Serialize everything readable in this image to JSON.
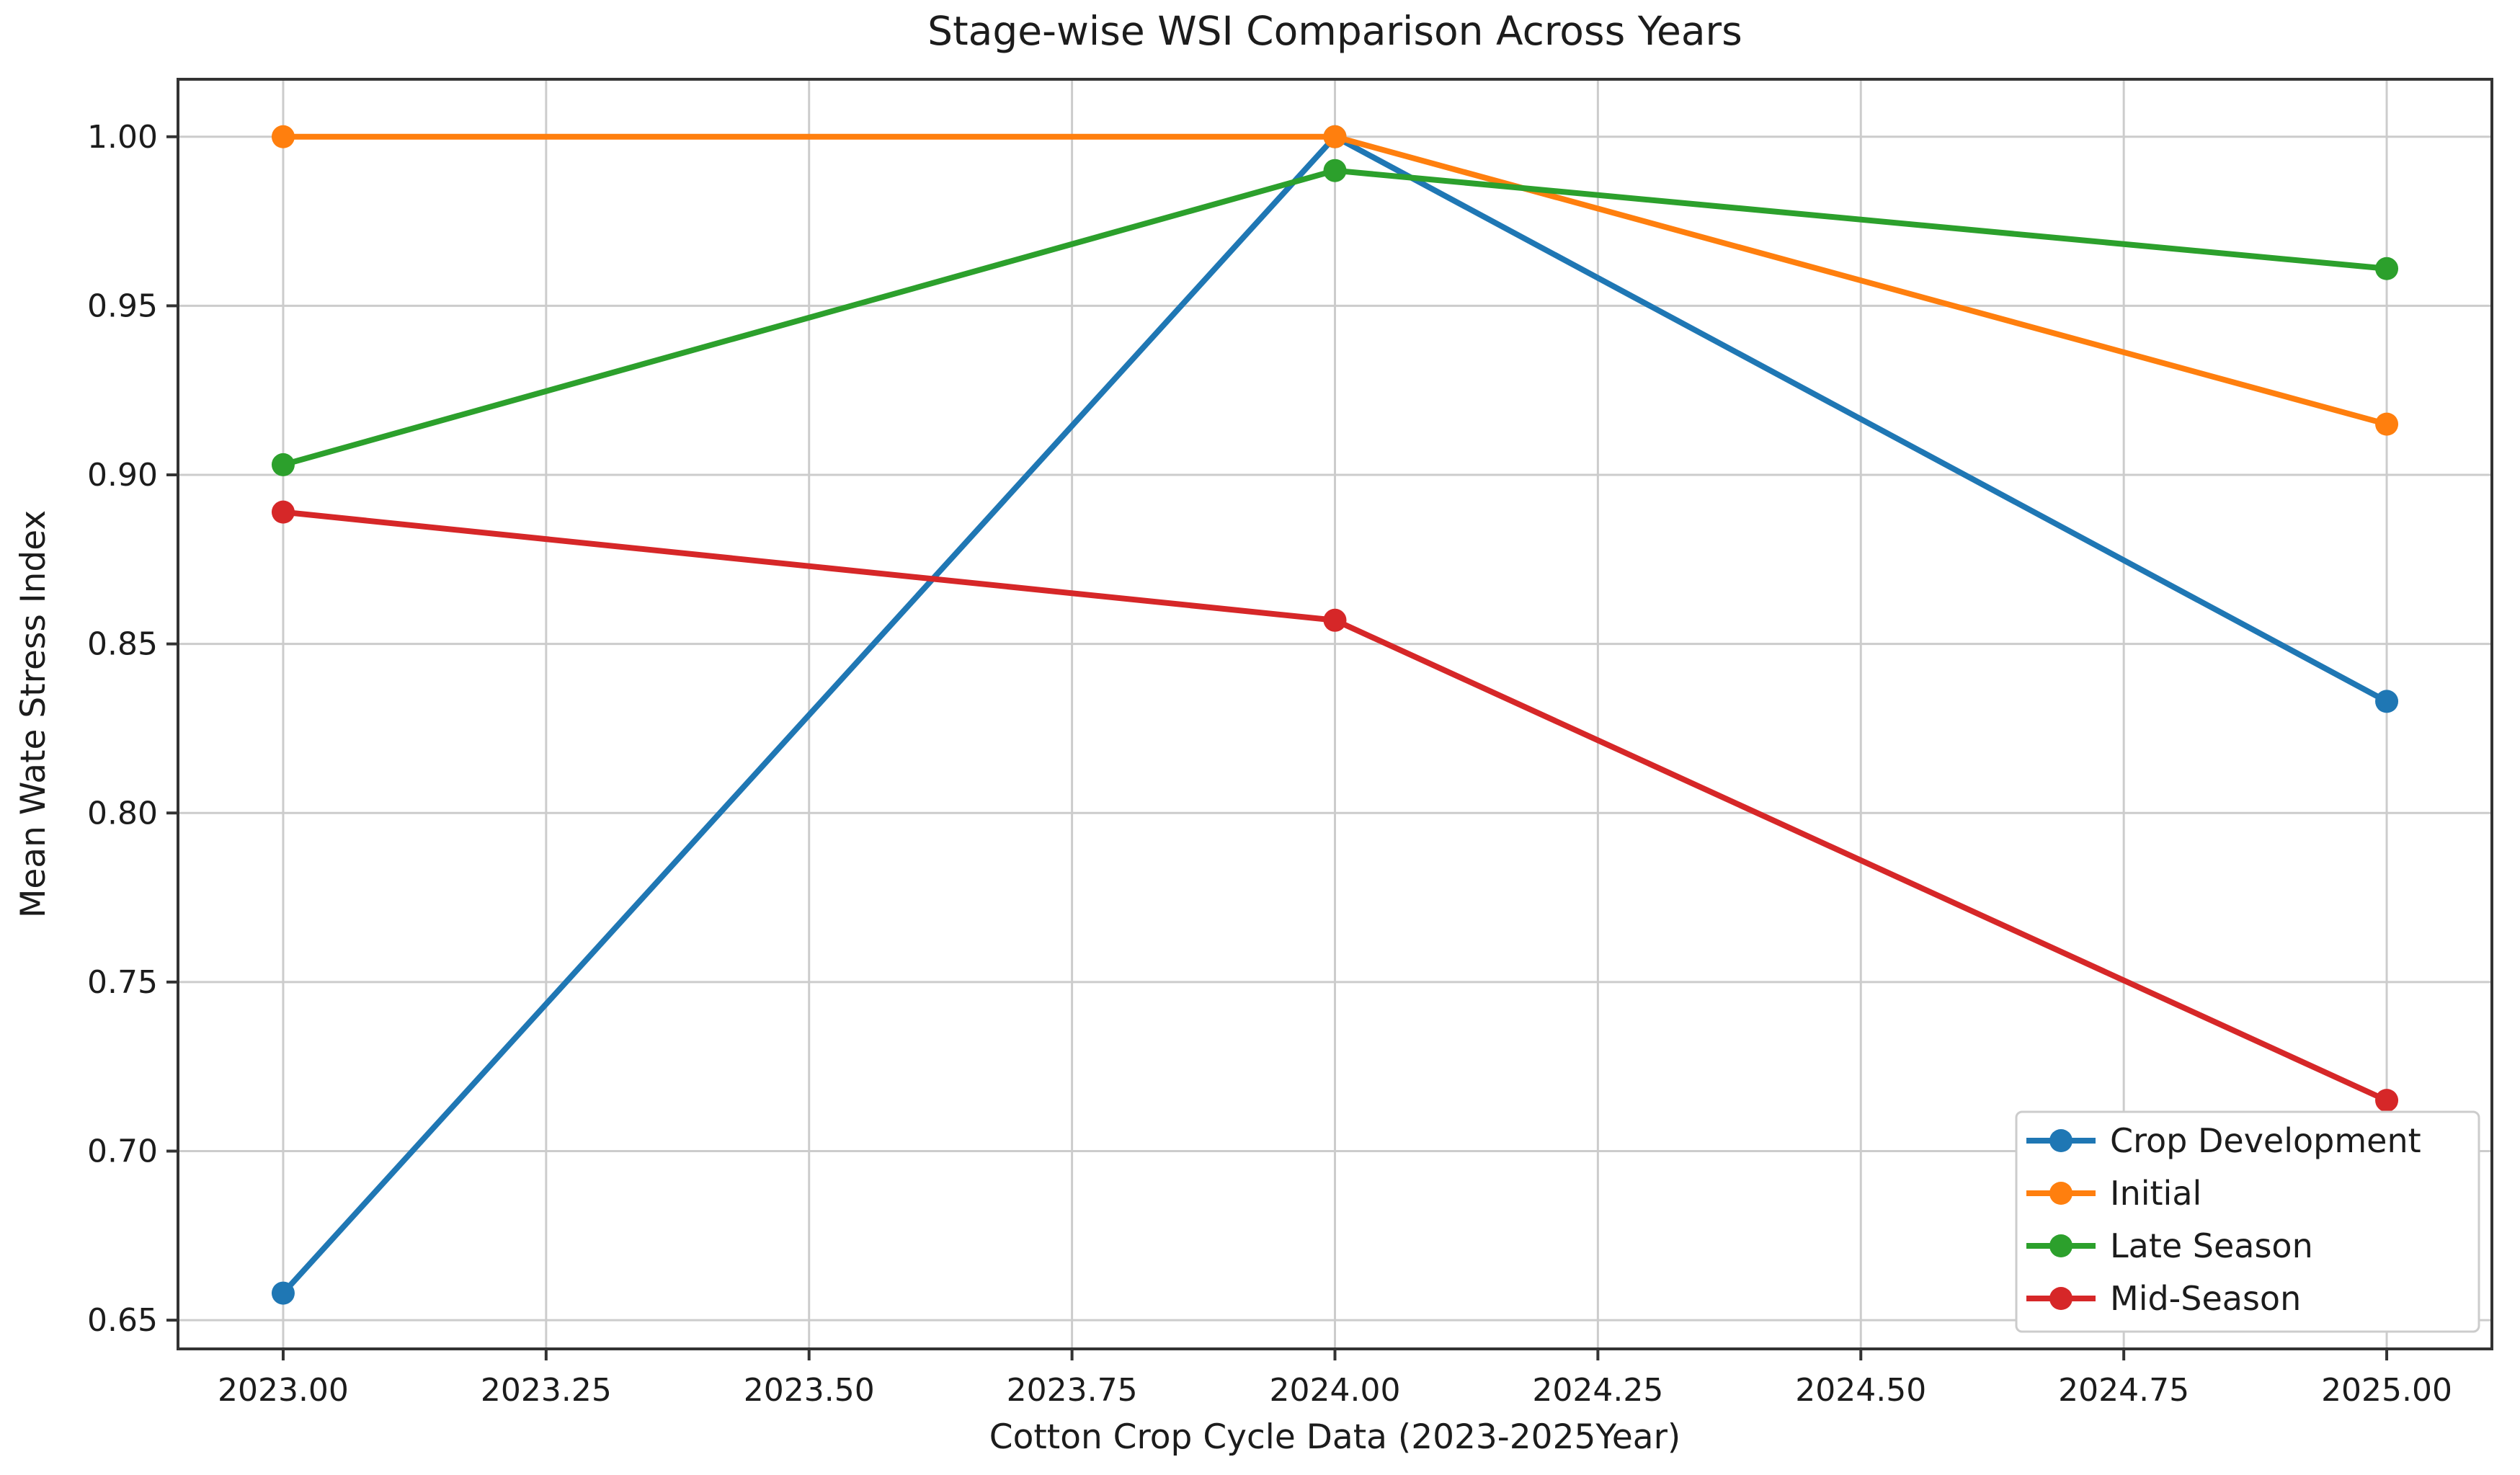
{
  "chart_data": {
    "type": "line",
    "title": "Stage-wise WSI Comparison Across Years",
    "xlabel": "Cotton Crop Cycle Data (2023-2025Year)",
    "ylabel": "Mean Wate Stress Index",
    "x": [
      2023,
      2024,
      2025
    ],
    "series": [
      {
        "name": "Crop Development",
        "color": "#1f77b4",
        "values": [
          0.658,
          1.0,
          0.833
        ]
      },
      {
        "name": "Initial",
        "color": "#ff7f0e",
        "values": [
          1.0,
          1.0,
          0.915
        ]
      },
      {
        "name": "Late Season",
        "color": "#2ca02c",
        "values": [
          0.903,
          0.99,
          0.961
        ]
      },
      {
        "name": "Mid-Season",
        "color": "#d62728",
        "values": [
          0.889,
          0.857,
          0.715
        ]
      }
    ],
    "xlim": [
      2022.9,
      2025.1
    ],
    "ylim": [
      0.6415,
      1.017
    ],
    "xtick_values": [
      2023,
      2023.25,
      2023.5,
      2023.75,
      2024,
      2024.25,
      2024.5,
      2024.75,
      2025
    ],
    "xtick_labels": [
      "2023.00",
      "2023.25",
      "2023.50",
      "2023.75",
      "2024.00",
      "2024.25",
      "2024.50",
      "2024.75",
      "2025.00"
    ],
    "ytick_values": [
      0.65,
      0.7,
      0.75,
      0.8,
      0.85,
      0.9,
      0.95,
      1.0
    ],
    "ytick_labels": [
      "0.65",
      "0.70",
      "0.75",
      "0.80",
      "0.85",
      "0.90",
      "0.95",
      "1.00"
    ],
    "grid": true,
    "legend_position": "lower right",
    "colors": {
      "grid": "#cccccc",
      "spine": "#333333",
      "text": "#1c1c1c",
      "background": "#ffffff",
      "legend_border": "#cccccc"
    }
  }
}
